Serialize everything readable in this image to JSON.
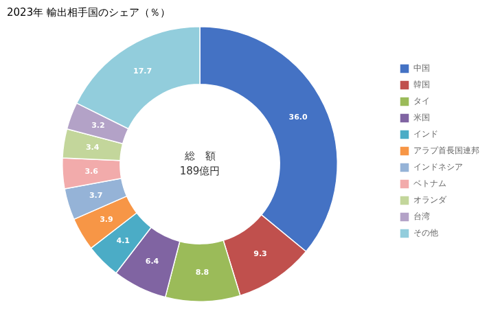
{
  "chart_data": {
    "type": "doughnut",
    "title": "2023年 輸出相手国のシェア（％）",
    "annotations": [
      "総　額",
      "189億円"
    ],
    "categories": [
      "中国",
      "韓国",
      "タイ",
      "米国",
      "インド",
      "アラブ首長国連邦",
      "インドネシア",
      "ベトナム",
      "オランダ",
      "台湾",
      "その他"
    ],
    "values": [
      36.0,
      9.3,
      8.8,
      6.4,
      4.1,
      3.9,
      3.7,
      3.6,
      3.4,
      3.2,
      17.7
    ],
    "value_labels": [
      "36.0",
      "9.3",
      "8.8",
      "6.4",
      "4.1",
      "3.9",
      "3.7",
      "3.6",
      "3.4",
      "3.2",
      "17.7"
    ],
    "colors": [
      "#4472C4",
      "#C0504D",
      "#9BBB59",
      "#8064A2",
      "#4BACC6",
      "#F79646",
      "#95B3D7",
      "#F2ABAB",
      "#C3D69B",
      "#B3A2C7",
      "#92CDDC"
    ],
    "data_labels": true,
    "legend": "right"
  }
}
